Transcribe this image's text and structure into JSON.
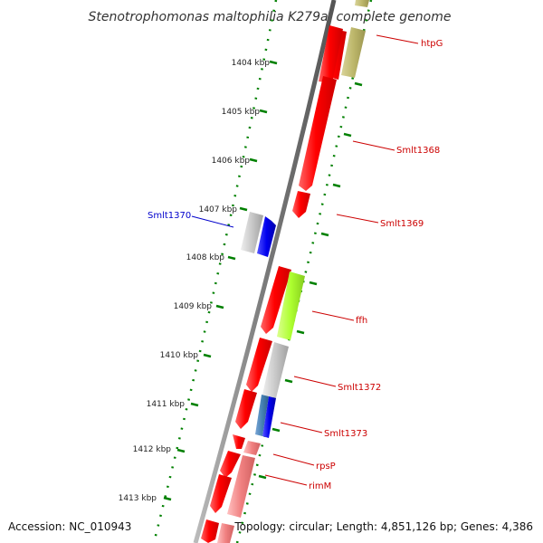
{
  "title": "Stenotrophomonas maltophilia K279a, complete genome",
  "ticks": [
    "1404 kbp",
    "1405 kbp",
    "1406 kbp",
    "1407 kbp",
    "1408 kbp",
    "1409 kbp",
    "1410 kbp",
    "1411 kbp",
    "1412 kbp",
    "1413 kbp"
  ],
  "genes": {
    "htpG": "htpG",
    "smlt1368": "Smlt1368",
    "smlt1369": "Smlt1369",
    "smlt1370": "Smlt1370",
    "ffh": "ffh",
    "smlt1372": "Smlt1372",
    "smlt1373": "Smlt1373",
    "rpsP": "rpsP",
    "rimM": "rimM"
  },
  "footer": {
    "accession": "Accession: NC_010943",
    "topology": "Topology: circular; Length: 4,851,126 bp; Genes: 4,386"
  },
  "colors": {
    "gene_red": "#ff0000",
    "forward_label": "#cc0000",
    "reverse_label": "#0000cc",
    "ticks": "#008000",
    "backbone": "#888888",
    "olive": "#bdb76b",
    "lime": "#adff2f",
    "grey_gene": "#c8c8c8",
    "blue_gene": "#0000ee",
    "pink_gene": "#f08080"
  }
}
